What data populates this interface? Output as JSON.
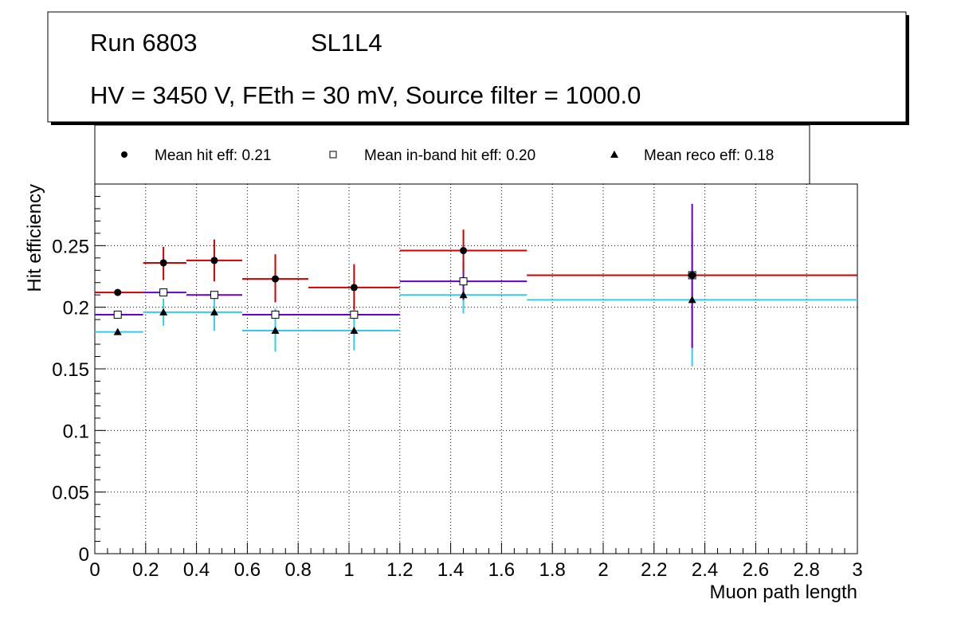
{
  "header": {
    "run": "Run 6803",
    "layer": "SL1L4",
    "conditions": "HV = 3450 V, FEth = 30 mV, Source filter = 1000.0"
  },
  "legend": {
    "hit": "Mean hit  eff: 0.21",
    "inband": "Mean in-band hit eff: 0.20",
    "reco": "Mean reco eff: 0.18"
  },
  "chart_data": {
    "type": "scatter",
    "title": "",
    "xlabel": "Muon path length",
    "ylabel": "Hit efficiency",
    "xlim": [
      0,
      3
    ],
    "ylim": [
      0,
      0.3
    ],
    "grid": true,
    "x_ticks": [
      "0",
      "0.2",
      "0.4",
      "0.6",
      "0.8",
      "1",
      "1.2",
      "1.4",
      "1.6",
      "1.8",
      "2",
      "2.2",
      "2.4",
      "2.6",
      "2.8",
      "3"
    ],
    "x_tick_values": [
      0,
      0.2,
      0.4,
      0.6,
      0.8,
      1.0,
      1.2,
      1.4,
      1.6,
      1.8,
      2.0,
      2.2,
      2.4,
      2.6,
      2.8,
      3.0
    ],
    "y_ticks": [
      "0",
      "0.05",
      "0.1",
      "0.15",
      "0.2",
      "0.25"
    ],
    "y_tick_values": [
      0,
      0.05,
      0.1,
      0.15,
      0.2,
      0.25
    ],
    "colors": {
      "hit": "#cc0000",
      "inband": "#6600cc",
      "reco": "#33ccee"
    },
    "series": [
      {
        "name": "Mean hit  eff: 0.21",
        "key": "hit",
        "marker": "circle",
        "points": [
          {
            "x": 0.09,
            "xlo": 0.0,
            "xhi": 0.19,
            "y": 0.212,
            "ylo": 0.212,
            "yhi": 0.212
          },
          {
            "x": 0.27,
            "xlo": 0.19,
            "xhi": 0.36,
            "y": 0.236,
            "ylo": 0.222,
            "yhi": 0.249
          },
          {
            "x": 0.47,
            "xlo": 0.36,
            "xhi": 0.58,
            "y": 0.238,
            "ylo": 0.221,
            "yhi": 0.255
          },
          {
            "x": 0.71,
            "xlo": 0.58,
            "xhi": 0.84,
            "y": 0.223,
            "ylo": 0.204,
            "yhi": 0.243
          },
          {
            "x": 1.02,
            "xlo": 0.84,
            "xhi": 1.2,
            "y": 0.216,
            "ylo": 0.198,
            "yhi": 0.235
          },
          {
            "x": 1.45,
            "xlo": 1.2,
            "xhi": 1.7,
            "y": 0.246,
            "ylo": 0.229,
            "yhi": 0.263
          },
          {
            "x": 2.35,
            "xlo": 1.7,
            "xhi": 3.0,
            "y": 0.226,
            "ylo": 0.226,
            "yhi": 0.226
          }
        ]
      },
      {
        "name": "Mean in-band hit eff: 0.20",
        "key": "inband",
        "marker": "square",
        "points": [
          {
            "x": 0.09,
            "xlo": 0.0,
            "xhi": 0.19,
            "y": 0.194,
            "ylo": 0.194,
            "yhi": 0.194
          },
          {
            "x": 0.27,
            "xlo": 0.19,
            "xhi": 0.36,
            "y": 0.212,
            "ylo": 0.212,
            "yhi": 0.212
          },
          {
            "x": 0.47,
            "xlo": 0.36,
            "xhi": 0.58,
            "y": 0.21,
            "ylo": 0.21,
            "yhi": 0.21
          },
          {
            "x": 0.71,
            "xlo": 0.58,
            "xhi": 0.84,
            "y": 0.194,
            "ylo": 0.194,
            "yhi": 0.194
          },
          {
            "x": 1.02,
            "xlo": 0.84,
            "xhi": 1.2,
            "y": 0.194,
            "ylo": 0.194,
            "yhi": 0.194
          },
          {
            "x": 1.45,
            "xlo": 1.2,
            "xhi": 1.7,
            "y": 0.221,
            "ylo": 0.206,
            "yhi": 0.237
          },
          {
            "x": 2.35,
            "xlo": 1.7,
            "xhi": 3.0,
            "y": 0.226,
            "ylo": 0.167,
            "yhi": 0.284
          }
        ]
      },
      {
        "name": "Mean reco eff: 0.18",
        "key": "reco",
        "marker": "triangle",
        "points": [
          {
            "x": 0.09,
            "xlo": 0.0,
            "xhi": 0.19,
            "y": 0.18,
            "ylo": 0.18,
            "yhi": 0.18
          },
          {
            "x": 0.27,
            "xlo": 0.19,
            "xhi": 0.36,
            "y": 0.196,
            "ylo": 0.185,
            "yhi": 0.207
          },
          {
            "x": 0.47,
            "xlo": 0.36,
            "xhi": 0.58,
            "y": 0.196,
            "ylo": 0.181,
            "yhi": 0.21
          },
          {
            "x": 0.71,
            "xlo": 0.58,
            "xhi": 0.84,
            "y": 0.181,
            "ylo": 0.164,
            "yhi": 0.199
          },
          {
            "x": 1.02,
            "xlo": 0.84,
            "xhi": 1.2,
            "y": 0.181,
            "ylo": 0.165,
            "yhi": 0.198
          },
          {
            "x": 1.45,
            "xlo": 1.2,
            "xhi": 1.7,
            "y": 0.21,
            "ylo": 0.195,
            "yhi": 0.224
          },
          {
            "x": 2.35,
            "xlo": 1.7,
            "xhi": 3.0,
            "y": 0.206,
            "ylo": 0.152,
            "yhi": 0.261
          }
        ]
      }
    ]
  }
}
